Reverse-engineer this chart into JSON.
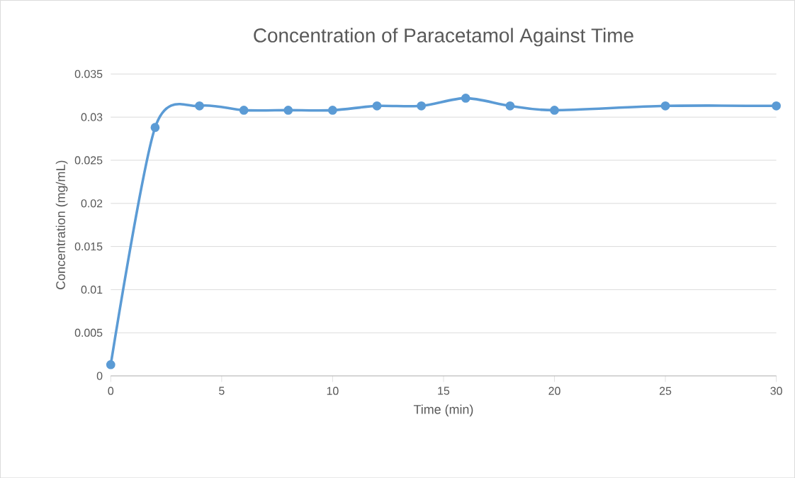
{
  "chart_data": {
    "type": "line",
    "title": "Concentration of Paracetamol Against Time",
    "xlabel": "Time (min)",
    "ylabel": "Concentration  (mg/mL)",
    "x": [
      0,
      2,
      4,
      6,
      8,
      10,
      12,
      14,
      16,
      18,
      20,
      25,
      30
    ],
    "series": [
      {
        "color": "#5b9bd5",
        "values": [
          0.0013,
          0.0288,
          0.0313,
          0.0308,
          0.0308,
          0.0308,
          0.0313,
          0.0313,
          0.0322,
          0.0313,
          0.0308,
          0.0313,
          0.0313
        ]
      }
    ],
    "xlim": [
      0,
      30
    ],
    "ylim": [
      0,
      0.035
    ],
    "xticks": [
      0,
      5,
      10,
      15,
      20,
      25,
      30
    ],
    "yticks": [
      0,
      0.005,
      0.01,
      0.015,
      0.02,
      0.025,
      0.03,
      0.035
    ],
    "grid": "y",
    "marker": "circle",
    "line_style": "solid"
  }
}
